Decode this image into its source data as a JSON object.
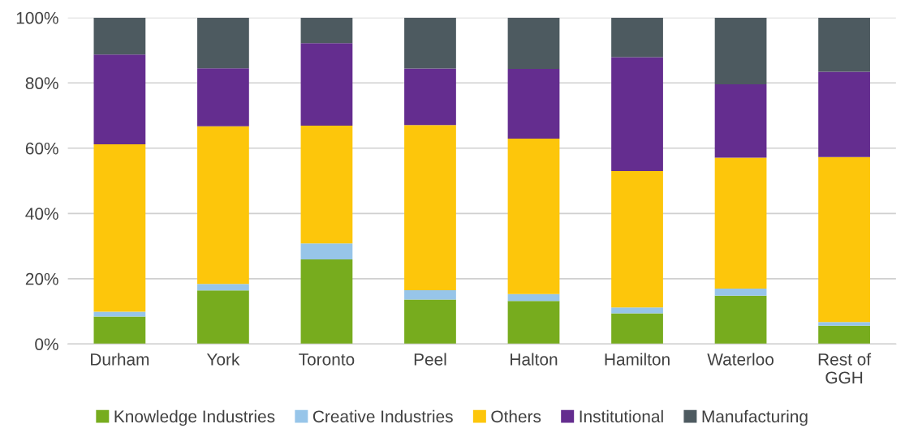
{
  "chart_data": {
    "type": "bar",
    "stacked": true,
    "categories": [
      "Durham",
      "York",
      "Toronto",
      "Peel",
      "Halton",
      "Hamilton",
      "Waterloo",
      "Rest of\nGGH"
    ],
    "series": [
      {
        "name": "Knowledge Industries",
        "color": "#77ac1e",
        "values": [
          8.4,
          16.4,
          25.9,
          13.6,
          13.2,
          9.4,
          14.8,
          5.6
        ]
      },
      {
        "name": "Creative Industries",
        "color": "#97c5e9",
        "values": [
          1.5,
          2.0,
          4.9,
          2.9,
          2.1,
          1.8,
          2.2,
          1.1
        ]
      },
      {
        "name": "Others",
        "color": "#fdc60b",
        "values": [
          51.3,
          48.3,
          36.1,
          50.6,
          47.6,
          41.8,
          40.1,
          50.6
        ]
      },
      {
        "name": "Institutional",
        "color": "#642d8f",
        "values": [
          27.5,
          17.8,
          25.3,
          17.3,
          21.4,
          34.9,
          22.5,
          26.1
        ]
      },
      {
        "name": "Manufacturing",
        "color": "#4d5a60",
        "values": [
          11.3,
          15.5,
          7.8,
          15.6,
          15.7,
          12.1,
          20.4,
          16.6
        ]
      }
    ],
    "ylim": [
      0,
      100
    ],
    "yticks": [
      {
        "value": 0,
        "label": "0%"
      },
      {
        "value": 20,
        "label": "20%"
      },
      {
        "value": 40,
        "label": "40%"
      },
      {
        "value": 60,
        "label": "60%"
      },
      {
        "value": 80,
        "label": "80%"
      },
      {
        "value": 100,
        "label": "100%"
      }
    ],
    "grid": "y",
    "legend": "bottom"
  }
}
